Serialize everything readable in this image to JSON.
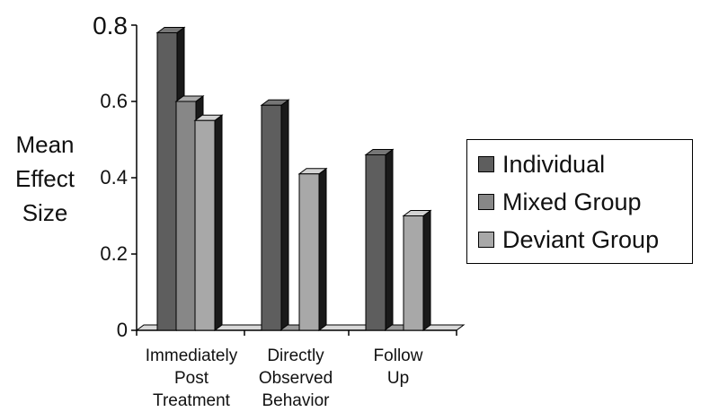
{
  "chart_data": {
    "type": "bar",
    "title": "",
    "xlabel": "",
    "ylabel": [
      "Mean",
      "Effect",
      "Size"
    ],
    "ylim": [
      0,
      0.8
    ],
    "yticks": [
      "0",
      "0.2",
      "0.4",
      "0.6",
      "0.8"
    ],
    "grid": false,
    "legend_position": "right",
    "categories": [
      [
        "Immediately",
        "Post",
        "Treatment"
      ],
      [
        "Directly",
        "Observed",
        "Behavior"
      ],
      [
        "Follow",
        "Up"
      ]
    ],
    "series": [
      {
        "name": "Individual",
        "values": [
          0.78,
          0.59,
          0.46
        ],
        "color": "#5e5e5e"
      },
      {
        "name": "Mixed Group",
        "values": [
          0.6,
          0.0,
          0.0
        ],
        "color": "#878787"
      },
      {
        "name": "Deviant Group",
        "values": [
          0.55,
          0.41,
          0.3
        ],
        "color": "#a8a8a8"
      }
    ]
  }
}
